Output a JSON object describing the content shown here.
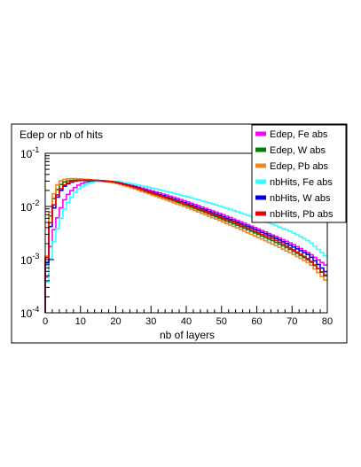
{
  "chart_data": {
    "type": "line",
    "title": "",
    "ylabel": "Edep or nb of hits",
    "xlabel": "nb of layers",
    "xlim": [
      0,
      80
    ],
    "ylim": [
      0.0001,
      0.1
    ],
    "y_scale": "log",
    "grid": false,
    "legend_position": "top-right",
    "x_ticks": [
      "0",
      "10",
      "20",
      "30",
      "40",
      "50",
      "60",
      "70",
      "80"
    ],
    "y_ticks": [
      {
        "base": "10",
        "exp": "-4",
        "value": 0.0001
      },
      {
        "base": "10",
        "exp": "-3",
        "value": 0.001
      },
      {
        "base": "10",
        "exp": "-2",
        "value": 0.01
      },
      {
        "base": "10",
        "exp": "-1",
        "value": 0.1
      }
    ],
    "x_bins": [
      0,
      80,
      80
    ],
    "series": [
      {
        "name": "Edep, Fe abs",
        "color": "#ff00ff",
        "knots": [
          [
            0,
            0.0002
          ],
          [
            1,
            0.0011
          ],
          [
            2,
            0.0028
          ],
          [
            3,
            0.0048
          ],
          [
            4,
            0.0078
          ],
          [
            5,
            0.0115
          ],
          [
            6,
            0.0155
          ],
          [
            8,
            0.0215
          ],
          [
            10,
            0.0265
          ],
          [
            12,
            0.029
          ],
          [
            14,
            0.03
          ],
          [
            16,
            0.03
          ],
          [
            18,
            0.0295
          ],
          [
            20,
            0.0285
          ],
          [
            25,
            0.0245
          ],
          [
            30,
            0.02
          ],
          [
            35,
            0.016
          ],
          [
            40,
            0.0125
          ],
          [
            45,
            0.0095
          ],
          [
            50,
            0.0072
          ],
          [
            55,
            0.0053
          ],
          [
            60,
            0.0039
          ],
          [
            65,
            0.0028
          ],
          [
            70,
            0.002
          ],
          [
            75,
            0.0013
          ],
          [
            80,
            0.00075
          ]
        ]
      },
      {
        "name": "Edep, W abs",
        "color": "#008000",
        "knots": [
          [
            0,
            0.0003
          ],
          [
            1,
            0.004
          ],
          [
            2,
            0.011
          ],
          [
            3,
            0.018
          ],
          [
            4,
            0.024
          ],
          [
            5,
            0.028
          ],
          [
            6,
            0.03
          ],
          [
            8,
            0.0312
          ],
          [
            10,
            0.031
          ],
          [
            12,
            0.0306
          ],
          [
            14,
            0.0302
          ],
          [
            16,
            0.0297
          ],
          [
            18,
            0.029
          ],
          [
            20,
            0.028
          ],
          [
            25,
            0.023
          ],
          [
            30,
            0.0178
          ],
          [
            35,
            0.0138
          ],
          [
            40,
            0.0105
          ],
          [
            45,
            0.0079
          ],
          [
            50,
            0.0058
          ],
          [
            55,
            0.0043
          ],
          [
            60,
            0.0031
          ],
          [
            65,
            0.0022
          ],
          [
            70,
            0.0015
          ],
          [
            75,
            0.00095
          ],
          [
            80,
            0.00048
          ]
        ]
      },
      {
        "name": "Edep, Pb abs",
        "color": "#ee8822",
        "knots": [
          [
            0,
            0.0003
          ],
          [
            1,
            0.0045
          ],
          [
            2,
            0.0135
          ],
          [
            3,
            0.0225
          ],
          [
            4,
            0.029
          ],
          [
            5,
            0.0318
          ],
          [
            6,
            0.033
          ],
          [
            8,
            0.0335
          ],
          [
            10,
            0.033
          ],
          [
            12,
            0.0322
          ],
          [
            14,
            0.0312
          ],
          [
            16,
            0.0302
          ],
          [
            18,
            0.029
          ],
          [
            20,
            0.0275
          ],
          [
            25,
            0.022
          ],
          [
            30,
            0.0168
          ],
          [
            35,
            0.0128
          ],
          [
            40,
            0.0097
          ],
          [
            45,
            0.0072
          ],
          [
            50,
            0.0053
          ],
          [
            55,
            0.0038
          ],
          [
            60,
            0.0027
          ],
          [
            65,
            0.0019
          ],
          [
            70,
            0.0013
          ],
          [
            75,
            0.00085
          ],
          [
            80,
            0.00038
          ]
        ]
      },
      {
        "name": "nbHits, Fe abs",
        "color": "#33ffff",
        "knots": [
          [
            0,
            0.0002
          ],
          [
            1,
            0.0007
          ],
          [
            2,
            0.0016
          ],
          [
            3,
            0.003
          ],
          [
            4,
            0.0048
          ],
          [
            5,
            0.0075
          ],
          [
            6,
            0.0105
          ],
          [
            8,
            0.017
          ],
          [
            10,
            0.0228
          ],
          [
            12,
            0.0268
          ],
          [
            14,
            0.029
          ],
          [
            16,
            0.0298
          ],
          [
            18,
            0.03
          ],
          [
            20,
            0.0295
          ],
          [
            25,
            0.0265
          ],
          [
            30,
            0.0225
          ],
          [
            35,
            0.0188
          ],
          [
            40,
            0.0155
          ],
          [
            45,
            0.0125
          ],
          [
            50,
            0.01
          ],
          [
            55,
            0.0078
          ],
          [
            60,
            0.006
          ],
          [
            65,
            0.0045
          ],
          [
            70,
            0.0033
          ],
          [
            75,
            0.0022
          ],
          [
            80,
            0.0011
          ]
        ]
      },
      {
        "name": "nbHits, W abs",
        "color": "#0000dd",
        "knots": [
          [
            0,
            0.0003
          ],
          [
            1,
            0.0025
          ],
          [
            2,
            0.007
          ],
          [
            3,
            0.0125
          ],
          [
            4,
            0.018
          ],
          [
            5,
            0.0225
          ],
          [
            6,
            0.0258
          ],
          [
            8,
            0.0295
          ],
          [
            10,
            0.031
          ],
          [
            12,
            0.0312
          ],
          [
            14,
            0.031
          ],
          [
            16,
            0.0305
          ],
          [
            18,
            0.0298
          ],
          [
            20,
            0.0288
          ],
          [
            25,
            0.024
          ],
          [
            30,
            0.0188
          ],
          [
            35,
            0.0148
          ],
          [
            40,
            0.0115
          ],
          [
            45,
            0.0088
          ],
          [
            50,
            0.0066
          ],
          [
            55,
            0.0049
          ],
          [
            60,
            0.0036
          ],
          [
            65,
            0.0026
          ],
          [
            70,
            0.0018
          ],
          [
            75,
            0.0012
          ],
          [
            80,
            0.00055
          ]
        ]
      },
      {
        "name": "nbHits, Pb abs",
        "color": "#ee0000",
        "knots": [
          [
            0,
            0.0004
          ],
          [
            1,
            0.003
          ],
          [
            2,
            0.0082
          ],
          [
            3,
            0.014
          ],
          [
            4,
            0.0195
          ],
          [
            5,
            0.024
          ],
          [
            6,
            0.027
          ],
          [
            8,
            0.03
          ],
          [
            10,
            0.0312
          ],
          [
            12,
            0.0314
          ],
          [
            14,
            0.0312
          ],
          [
            16,
            0.0306
          ],
          [
            18,
            0.0298
          ],
          [
            20,
            0.0286
          ],
          [
            25,
            0.0235
          ],
          [
            30,
            0.0182
          ],
          [
            35,
            0.0142
          ],
          [
            40,
            0.011
          ],
          [
            45,
            0.0083
          ],
          [
            50,
            0.0062
          ],
          [
            55,
            0.0046
          ],
          [
            60,
            0.0033
          ],
          [
            65,
            0.0024
          ],
          [
            70,
            0.0016
          ],
          [
            75,
            0.001
          ],
          [
            80,
            0.00046
          ]
        ]
      }
    ]
  }
}
